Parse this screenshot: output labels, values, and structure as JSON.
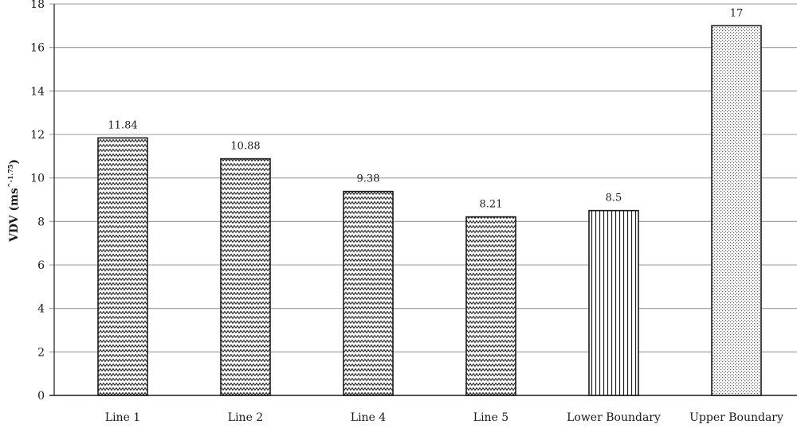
{
  "chart_data": {
    "type": "bar",
    "title": "",
    "xlabel": "",
    "ylabel": {
      "prefix": "VDV (ms",
      "superscript": "^-1.75",
      "suffix": ")"
    },
    "ylim": [
      0,
      18
    ],
    "yticks": [
      "0",
      "2",
      "4",
      "6",
      "8",
      "10",
      "12",
      "14",
      "16",
      "18"
    ],
    "grid": true,
    "categories": [
      "Line 1",
      "Line 2",
      "Line 4",
      "Line 5",
      "Lower Boundary",
      "Upper Boundary"
    ],
    "values": [
      11.84,
      10.88,
      9.38,
      8.21,
      8.5,
      17
    ],
    "data_labels": [
      "11.84",
      "10.88",
      "9.38",
      "8.21",
      "8.5",
      "17"
    ],
    "patterns": [
      "zigzag",
      "zigzag",
      "zigzag",
      "zigzag",
      "vertical-lines",
      "dots"
    ],
    "colors": {
      "bar_stroke": "#1a1a1a",
      "grid": "#999999",
      "pattern": "#222222",
      "background": "#ffffff"
    }
  }
}
